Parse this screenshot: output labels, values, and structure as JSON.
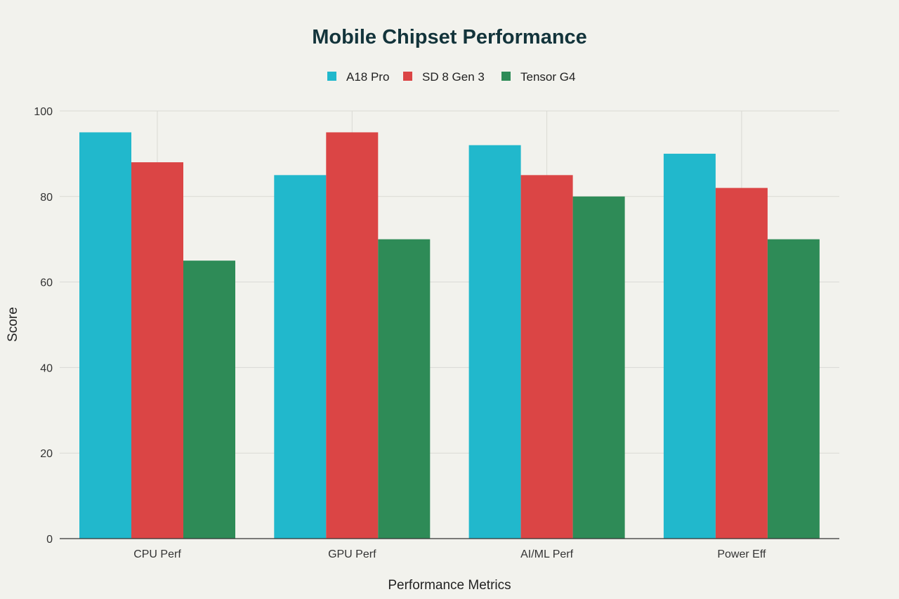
{
  "chart_data": {
    "type": "bar",
    "title": "Mobile Chipset Performance",
    "xlabel": "Performance Metrics",
    "ylabel": "Score",
    "categories": [
      "CPU Perf",
      "GPU Perf",
      "AI/ML Perf",
      "Power Eff"
    ],
    "series": [
      {
        "name": "A18 Pro",
        "color": "#21b8cc",
        "values": [
          95,
          85,
          92,
          90
        ]
      },
      {
        "name": "SD 8 Gen 3",
        "color": "#db4545",
        "values": [
          88,
          95,
          85,
          82
        ]
      },
      {
        "name": "Tensor G4",
        "color": "#2e8b57",
        "values": [
          65,
          70,
          80,
          70
        ]
      }
    ],
    "ylim": [
      0,
      100
    ],
    "yticks": [
      0,
      20,
      40,
      60,
      80,
      100
    ],
    "grid": true,
    "legend_position": "top-center"
  },
  "colors": {
    "background": "#f2f2ed",
    "title": "#13343b",
    "text": "#333333",
    "grid": "#d9d9d4",
    "axis": "#333333"
  }
}
